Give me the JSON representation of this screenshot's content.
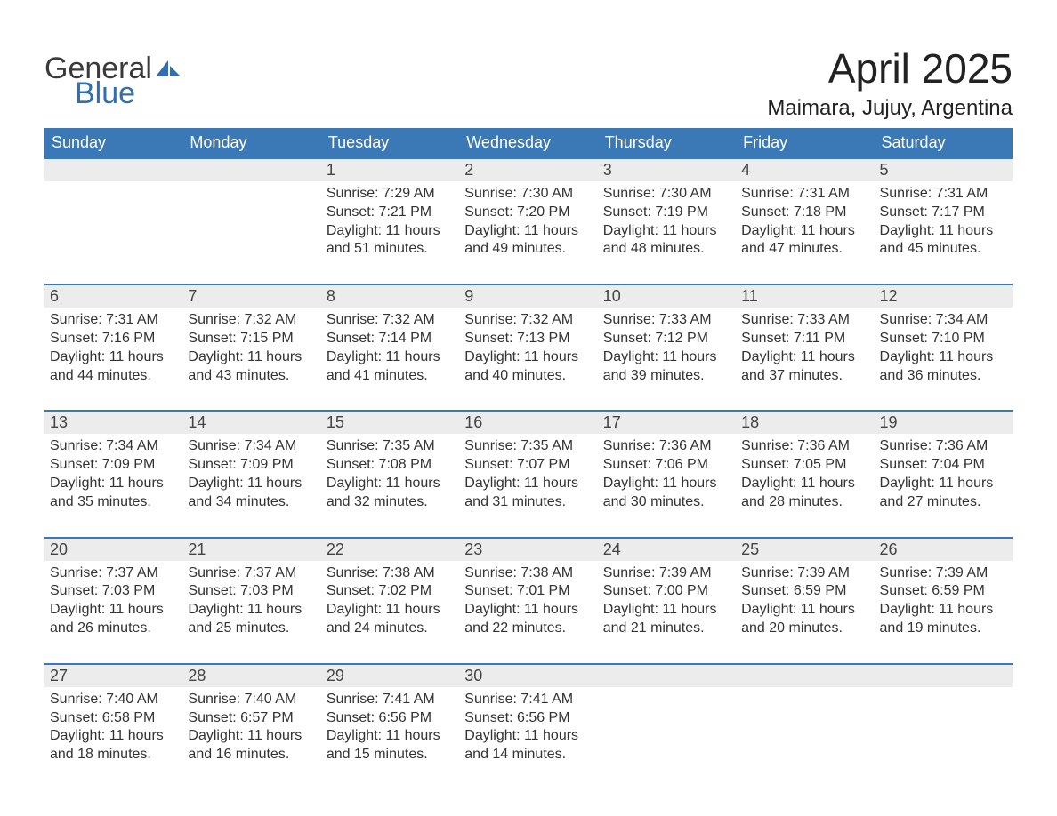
{
  "logo": {
    "word1": "General",
    "word2": "Blue"
  },
  "title": "April 2025",
  "location": "Maimara, Jujuy, Argentina",
  "colors": {
    "header_bg": "#3b78b6",
    "header_text": "#ffffff",
    "daynum_bg": "#ececec",
    "row_border": "#3b78b6",
    "body_text": "#333333",
    "logo_gray": "#3a3a3a",
    "logo_blue": "#2f6fb0",
    "page_bg": "#ffffff"
  },
  "weekdays": [
    "Sunday",
    "Monday",
    "Tuesday",
    "Wednesday",
    "Thursday",
    "Friday",
    "Saturday"
  ],
  "weeks": [
    [
      {
        "day": "",
        "sunrise": "",
        "sunset": "",
        "daylight": ""
      },
      {
        "day": "",
        "sunrise": "",
        "sunset": "",
        "daylight": ""
      },
      {
        "day": "1",
        "sunrise": "Sunrise: 7:29 AM",
        "sunset": "Sunset: 7:21 PM",
        "daylight": "Daylight: 11 hours and 51 minutes."
      },
      {
        "day": "2",
        "sunrise": "Sunrise: 7:30 AM",
        "sunset": "Sunset: 7:20 PM",
        "daylight": "Daylight: 11 hours and 49 minutes."
      },
      {
        "day": "3",
        "sunrise": "Sunrise: 7:30 AM",
        "sunset": "Sunset: 7:19 PM",
        "daylight": "Daylight: 11 hours and 48 minutes."
      },
      {
        "day": "4",
        "sunrise": "Sunrise: 7:31 AM",
        "sunset": "Sunset: 7:18 PM",
        "daylight": "Daylight: 11 hours and 47 minutes."
      },
      {
        "day": "5",
        "sunrise": "Sunrise: 7:31 AM",
        "sunset": "Sunset: 7:17 PM",
        "daylight": "Daylight: 11 hours and 45 minutes."
      }
    ],
    [
      {
        "day": "6",
        "sunrise": "Sunrise: 7:31 AM",
        "sunset": "Sunset: 7:16 PM",
        "daylight": "Daylight: 11 hours and 44 minutes."
      },
      {
        "day": "7",
        "sunrise": "Sunrise: 7:32 AM",
        "sunset": "Sunset: 7:15 PM",
        "daylight": "Daylight: 11 hours and 43 minutes."
      },
      {
        "day": "8",
        "sunrise": "Sunrise: 7:32 AM",
        "sunset": "Sunset: 7:14 PM",
        "daylight": "Daylight: 11 hours and 41 minutes."
      },
      {
        "day": "9",
        "sunrise": "Sunrise: 7:32 AM",
        "sunset": "Sunset: 7:13 PM",
        "daylight": "Daylight: 11 hours and 40 minutes."
      },
      {
        "day": "10",
        "sunrise": "Sunrise: 7:33 AM",
        "sunset": "Sunset: 7:12 PM",
        "daylight": "Daylight: 11 hours and 39 minutes."
      },
      {
        "day": "11",
        "sunrise": "Sunrise: 7:33 AM",
        "sunset": "Sunset: 7:11 PM",
        "daylight": "Daylight: 11 hours and 37 minutes."
      },
      {
        "day": "12",
        "sunrise": "Sunrise: 7:34 AM",
        "sunset": "Sunset: 7:10 PM",
        "daylight": "Daylight: 11 hours and 36 minutes."
      }
    ],
    [
      {
        "day": "13",
        "sunrise": "Sunrise: 7:34 AM",
        "sunset": "Sunset: 7:09 PM",
        "daylight": "Daylight: 11 hours and 35 minutes."
      },
      {
        "day": "14",
        "sunrise": "Sunrise: 7:34 AM",
        "sunset": "Sunset: 7:09 PM",
        "daylight": "Daylight: 11 hours and 34 minutes."
      },
      {
        "day": "15",
        "sunrise": "Sunrise: 7:35 AM",
        "sunset": "Sunset: 7:08 PM",
        "daylight": "Daylight: 11 hours and 32 minutes."
      },
      {
        "day": "16",
        "sunrise": "Sunrise: 7:35 AM",
        "sunset": "Sunset: 7:07 PM",
        "daylight": "Daylight: 11 hours and 31 minutes."
      },
      {
        "day": "17",
        "sunrise": "Sunrise: 7:36 AM",
        "sunset": "Sunset: 7:06 PM",
        "daylight": "Daylight: 11 hours and 30 minutes."
      },
      {
        "day": "18",
        "sunrise": "Sunrise: 7:36 AM",
        "sunset": "Sunset: 7:05 PM",
        "daylight": "Daylight: 11 hours and 28 minutes."
      },
      {
        "day": "19",
        "sunrise": "Sunrise: 7:36 AM",
        "sunset": "Sunset: 7:04 PM",
        "daylight": "Daylight: 11 hours and 27 minutes."
      }
    ],
    [
      {
        "day": "20",
        "sunrise": "Sunrise: 7:37 AM",
        "sunset": "Sunset: 7:03 PM",
        "daylight": "Daylight: 11 hours and 26 minutes."
      },
      {
        "day": "21",
        "sunrise": "Sunrise: 7:37 AM",
        "sunset": "Sunset: 7:03 PM",
        "daylight": "Daylight: 11 hours and 25 minutes."
      },
      {
        "day": "22",
        "sunrise": "Sunrise: 7:38 AM",
        "sunset": "Sunset: 7:02 PM",
        "daylight": "Daylight: 11 hours and 24 minutes."
      },
      {
        "day": "23",
        "sunrise": "Sunrise: 7:38 AM",
        "sunset": "Sunset: 7:01 PM",
        "daylight": "Daylight: 11 hours and 22 minutes."
      },
      {
        "day": "24",
        "sunrise": "Sunrise: 7:39 AM",
        "sunset": "Sunset: 7:00 PM",
        "daylight": "Daylight: 11 hours and 21 minutes."
      },
      {
        "day": "25",
        "sunrise": "Sunrise: 7:39 AM",
        "sunset": "Sunset: 6:59 PM",
        "daylight": "Daylight: 11 hours and 20 minutes."
      },
      {
        "day": "26",
        "sunrise": "Sunrise: 7:39 AM",
        "sunset": "Sunset: 6:59 PM",
        "daylight": "Daylight: 11 hours and 19 minutes."
      }
    ],
    [
      {
        "day": "27",
        "sunrise": "Sunrise: 7:40 AM",
        "sunset": "Sunset: 6:58 PM",
        "daylight": "Daylight: 11 hours and 18 minutes."
      },
      {
        "day": "28",
        "sunrise": "Sunrise: 7:40 AM",
        "sunset": "Sunset: 6:57 PM",
        "daylight": "Daylight: 11 hours and 16 minutes."
      },
      {
        "day": "29",
        "sunrise": "Sunrise: 7:41 AM",
        "sunset": "Sunset: 6:56 PM",
        "daylight": "Daylight: 11 hours and 15 minutes."
      },
      {
        "day": "30",
        "sunrise": "Sunrise: 7:41 AM",
        "sunset": "Sunset: 6:56 PM",
        "daylight": "Daylight: 11 hours and 14 minutes."
      },
      {
        "day": "",
        "sunrise": "",
        "sunset": "",
        "daylight": ""
      },
      {
        "day": "",
        "sunrise": "",
        "sunset": "",
        "daylight": ""
      },
      {
        "day": "",
        "sunrise": "",
        "sunset": "",
        "daylight": ""
      }
    ]
  ]
}
